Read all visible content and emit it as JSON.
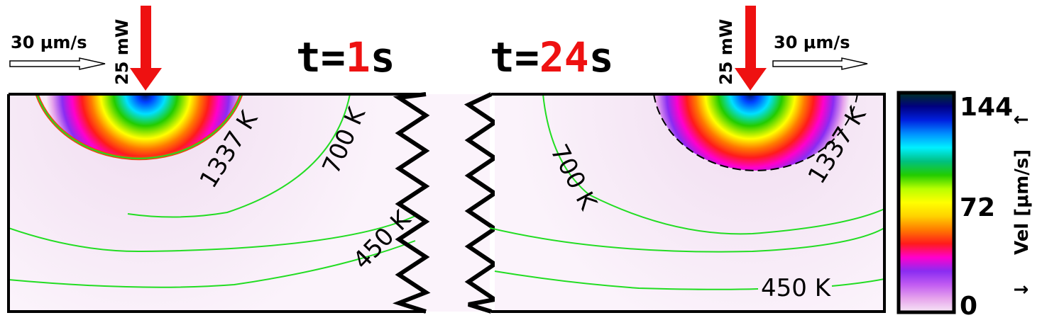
{
  "panels": [
    {
      "time_prefix": "t=",
      "time_value": "1",
      "time_unit": "s",
      "scan_speed": "30 μm/s",
      "laser_power": "25 mW",
      "isotherms": [
        "1337 K",
        "700 K",
        "450 K"
      ]
    },
    {
      "time_prefix": "t=",
      "time_value": "24",
      "time_unit": "s",
      "scan_speed": "30 μm/s",
      "laser_power": "25 mW",
      "isotherms": [
        "1337 K",
        "700 K",
        "450 K"
      ]
    }
  ],
  "colorbar": {
    "label": "Vel [μm/s]",
    "up_arrow": "↑",
    "down_arrow": "↓",
    "ticks": [
      "144",
      "72",
      "0"
    ],
    "min": 0,
    "max": 144,
    "colors": [
      "#f7e8f6",
      "#e6a4ec",
      "#c25cf2",
      "#8a2cf2",
      "#ff00cc",
      "#ff1b1b",
      "#ff7a00",
      "#ffd200",
      "#ffff00",
      "#b8ff00",
      "#22cc00",
      "#00c080",
      "#00f0ff",
      "#0090ff",
      "#0020e0",
      "#000080",
      "#003322"
    ]
  },
  "colors": {
    "laser": "#ee1111",
    "isotherm": "#22dd22",
    "melt_boundary": "#ee4411",
    "highlight": "#ee1111"
  }
}
